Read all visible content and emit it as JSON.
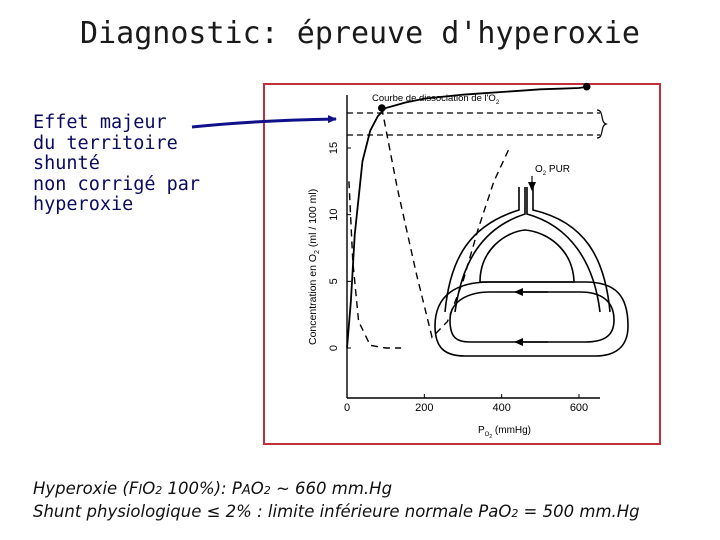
{
  "title": "Diagnostic: épreuve d'hyperoxie",
  "callout": {
    "lines": [
      "Effet majeur",
      "du territoire",
      "shunté",
      "non corrigé par",
      "hyperoxie"
    ]
  },
  "figure": {
    "curve_label": "Courbe de dissociation de l'O",
    "curve_label_sub": "2",
    "o2_label": "O",
    "o2_sub": "2",
    "o2_suffix": " PUR",
    "ylabel": "Concentration en O",
    "ylabel_sub": "2",
    "ylabel_suffix": " (ml / 100 ml)",
    "xlabel": "P",
    "xlabel_sub": "O",
    "xlabel_sub2": "2",
    "xlabel_suffix": " (mmHg)",
    "border_color": "#c0303a",
    "arrow_color": "#10108a"
  },
  "chart_data": {
    "type": "line",
    "x_ticks": [
      "0",
      "200",
      "400",
      "600"
    ],
    "y_ticks": [
      "0",
      "5",
      "10",
      "15"
    ],
    "xlim": [
      0,
      700
    ],
    "ylim": [
      -2,
      20
    ],
    "series": [
      {
        "style": "solid",
        "x": [
          0,
          10,
          20,
          40,
          60,
          80,
          100,
          150,
          200,
          300,
          400,
          500,
          600,
          620
        ],
        "y": [
          0,
          3.5,
          8.5,
          14.0,
          16.3,
          17.4,
          18.0,
          18.4,
          18.7,
          19.0,
          19.2,
          19.4,
          19.5,
          19.6
        ]
      },
      {
        "style": "dashed",
        "x": [
          90,
          130,
          180,
          220,
          260,
          300,
          340,
          380,
          420
        ],
        "y": [
          18.0,
          12.0,
          5.5,
          0.8,
          2.0,
          5.0,
          9.0,
          12.5,
          15.0
        ]
      },
      {
        "style": "dashed",
        "x": [
          5,
          15,
          30,
          60,
          100,
          140
        ],
        "y": [
          12.5,
          6.5,
          2.0,
          0.2,
          0.0,
          0.0
        ]
      }
    ],
    "points": [
      {
        "x": 90,
        "y": 18.0
      },
      {
        "x": 620,
        "y": 19.6
      }
    ]
  },
  "footer": {
    "line1_a": "Hyperoxie (F",
    "line1_b": "I",
    "line1_c": "O",
    "line1_d": "2",
    "line1_e": " 100%): P",
    "line1_f": "A",
    "line1_g": "O",
    "line1_h": "2",
    "line1_i": " ~ 660 mm.Hg",
    "line2_a": "Shunt physiologique ",
    "line2_b": "≤",
    "line2_c": " 2% : limite inférieure normale PaO",
    "line2_d": "2",
    "line2_e": " = 500 mm.Hg"
  }
}
